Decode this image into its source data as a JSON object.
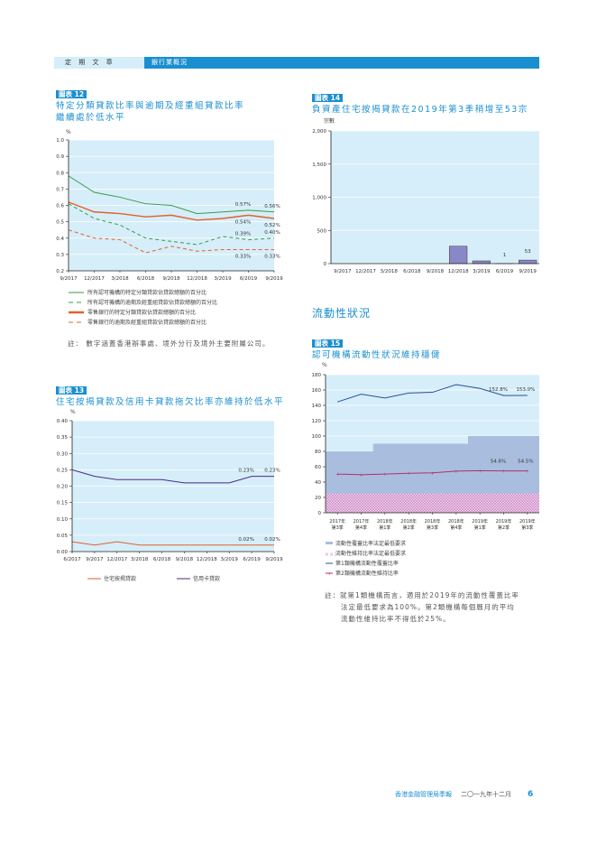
{
  "header": {
    "section": "定 期 文 章",
    "title": "銀行業概況"
  },
  "charts_text": {
    "c12": {
      "tag": "圖表 12",
      "title1": "特定分類貸款比率與逾期及經重組貸款比率",
      "title2": "繼續處於低水平",
      "unit": "%",
      "note": "註： 數字涵蓋香港辦事處、境外分行及境外主要附屬公司。"
    },
    "c13": {
      "tag": "圖表 13",
      "title": "住宅按揭貸款及信用卡貸款拖欠比率亦維持於低水平",
      "unit": "%"
    },
    "c14": {
      "tag": "圖表 14",
      "title": "負資產住宅按揭貸款在2019年第3季稍增至53宗",
      "unit": "宗數"
    },
    "section_liquidity": "流動性狀況",
    "c15": {
      "tag": "圖表 15",
      "title": "認可機構流動性狀況維持穩健",
      "unit": "%",
      "note1": "註：就第1類機構而言，適用於2019年的流動性覆蓋比率",
      "note2": "法定最低要求為100%。第2類機構每個曆月的平均",
      "note3": "流動性維持比率不得低於25%。"
    }
  },
  "footer": {
    "publication": "香港金融管理局季報",
    "date": "二〇一九年十二月",
    "page": "6"
  },
  "colors": {
    "accent": "#1a8fd0",
    "plot_bg": "#d6eef9",
    "green": "#3a9b4a",
    "orange": "#e0622a",
    "purple": "#4b2a86",
    "bar": "#8a87c8",
    "lcr": "#2a4f9a",
    "lmr": "#b0306e",
    "coverage_band": "#a9bedf",
    "maintenance_band": "#d9a5d6"
  },
  "chart_data": [
    {
      "id": "c12",
      "type": "line",
      "ylim": [
        0.2,
        1.0
      ],
      "yticks": [
        "0.2",
        "0.3",
        "0.4",
        "0.5",
        "0.6",
        "0.7",
        "0.8",
        "0.9",
        "1.0"
      ],
      "categories": [
        "9/2017",
        "12/2017",
        "3/2018",
        "6/2018",
        "9/2018",
        "12/2018",
        "3/2019",
        "6/2019",
        "9/2019"
      ],
      "series": [
        {
          "name": "所有認可機構的特定分類貸款佔貸款總額的百分比",
          "style": "solid",
          "color": "#3a9b4a",
          "values": [
            0.78,
            0.68,
            0.65,
            0.61,
            0.6,
            0.55,
            0.56,
            0.57,
            0.56
          ],
          "labels": [
            "0.57%",
            "0.56%"
          ]
        },
        {
          "name": "所有認可機構的逾期及經重組貸款佔貸款總額的百分比",
          "style": "dashed",
          "color": "#3a9b4a",
          "values": [
            0.61,
            0.52,
            0.48,
            0.4,
            0.38,
            0.36,
            0.41,
            0.39,
            0.4
          ],
          "labels": [
            "0.39%",
            "0.40%"
          ]
        },
        {
          "name": "零售銀行的特定分類貸款佔貸款總額的百分比",
          "style": "solid",
          "color": "#e0622a",
          "values": [
            0.62,
            0.56,
            0.55,
            0.53,
            0.54,
            0.51,
            0.52,
            0.54,
            0.52
          ],
          "labels": [
            "0.54%",
            "0.52%"
          ]
        },
        {
          "name": "零售銀行的逾期及經重組貸款佔貸款總額的百分比",
          "style": "dashed",
          "color": "#e0622a",
          "values": [
            0.45,
            0.4,
            0.39,
            0.31,
            0.35,
            0.32,
            0.33,
            0.33,
            0.33
          ],
          "labels": [
            "0.33%",
            "0.33%"
          ]
        }
      ]
    },
    {
      "id": "c13",
      "type": "line",
      "ylim": [
        0,
        0.4
      ],
      "yticks": [
        "0.00",
        "0.05",
        "0.10",
        "0.15",
        "0.20",
        "0.25",
        "0.30",
        "0.35",
        "0.40"
      ],
      "categories": [
        "6/2017",
        "9/2017",
        "12/2017",
        "3/2018",
        "6/2018",
        "9/2018",
        "12/2018",
        "3/2019",
        "6/2019",
        "9/2019"
      ],
      "series": [
        {
          "name": "住宅按揭貸款",
          "style": "solid",
          "color": "#e0622a",
          "values": [
            0.03,
            0.02,
            0.03,
            0.02,
            0.02,
            0.02,
            0.02,
            0.02,
            0.02,
            0.02
          ],
          "labels": [
            "0.02%",
            "0.02%"
          ]
        },
        {
          "name": "信用卡貸款",
          "style": "solid",
          "color": "#4b2a86",
          "values": [
            0.25,
            0.23,
            0.22,
            0.22,
            0.22,
            0.21,
            0.21,
            0.21,
            0.23,
            0.23
          ],
          "labels": [
            "0.23%",
            "0.23%"
          ]
        }
      ]
    },
    {
      "id": "c14",
      "type": "bar",
      "ylim": [
        0,
        2000
      ],
      "yticks": [
        "0",
        "500",
        "1,000",
        "1,500",
        "2,000"
      ],
      "categories": [
        "9/2017",
        "12/2017",
        "3/2018",
        "6/2018",
        "9/2018",
        "12/2018",
        "3/2019",
        "6/2019",
        "9/2019"
      ],
      "values": [
        0,
        0,
        0,
        0,
        0,
        262,
        41,
        1,
        53
      ],
      "data_labels": {
        "7": "1",
        "8": "53"
      }
    },
    {
      "id": "c15",
      "type": "line",
      "ylim": [
        0,
        180
      ],
      "yticks": [
        "0",
        "20",
        "40",
        "60",
        "80",
        "100",
        "120",
        "140",
        "160",
        "180"
      ],
      "categories": [
        [
          "2017年",
          "第3季"
        ],
        [
          "2017年",
          "第4季"
        ],
        [
          "2018年",
          "第1季"
        ],
        [
          "2018年",
          "第2季"
        ],
        [
          "2018年",
          "第3季"
        ],
        [
          "2018年",
          "第4季"
        ],
        [
          "2019年",
          "第1季"
        ],
        [
          "2019年",
          "第2季"
        ],
        [
          "2019年",
          "第3季"
        ]
      ],
      "bands": [
        {
          "name": "流動性覆蓋比率法定最低要求",
          "values": [
            80,
            80,
            90,
            90,
            90,
            90,
            100,
            100,
            100
          ]
        },
        {
          "name": "流動性維持比率法定最低要求",
          "values": [
            25,
            25,
            25,
            25,
            25,
            25,
            25,
            25,
            25
          ]
        }
      ],
      "series": [
        {
          "name": "第1類機構流動性覆蓋比率",
          "color": "#2a4f9a",
          "values": [
            144.5,
            154.5,
            149.5,
            156,
            157,
            167,
            162,
            152.8,
            153.0
          ],
          "labels": [
            "152.8%",
            "153.0%"
          ]
        },
        {
          "name": "第2類機構流動性維持比率",
          "color": "#b0306e",
          "values": [
            50.5,
            49.5,
            50.5,
            51.5,
            52,
            54.3,
            54.8,
            54.6,
            54.5
          ],
          "labels": [
            "54.6%",
            "54.5%"
          ]
        }
      ]
    }
  ]
}
